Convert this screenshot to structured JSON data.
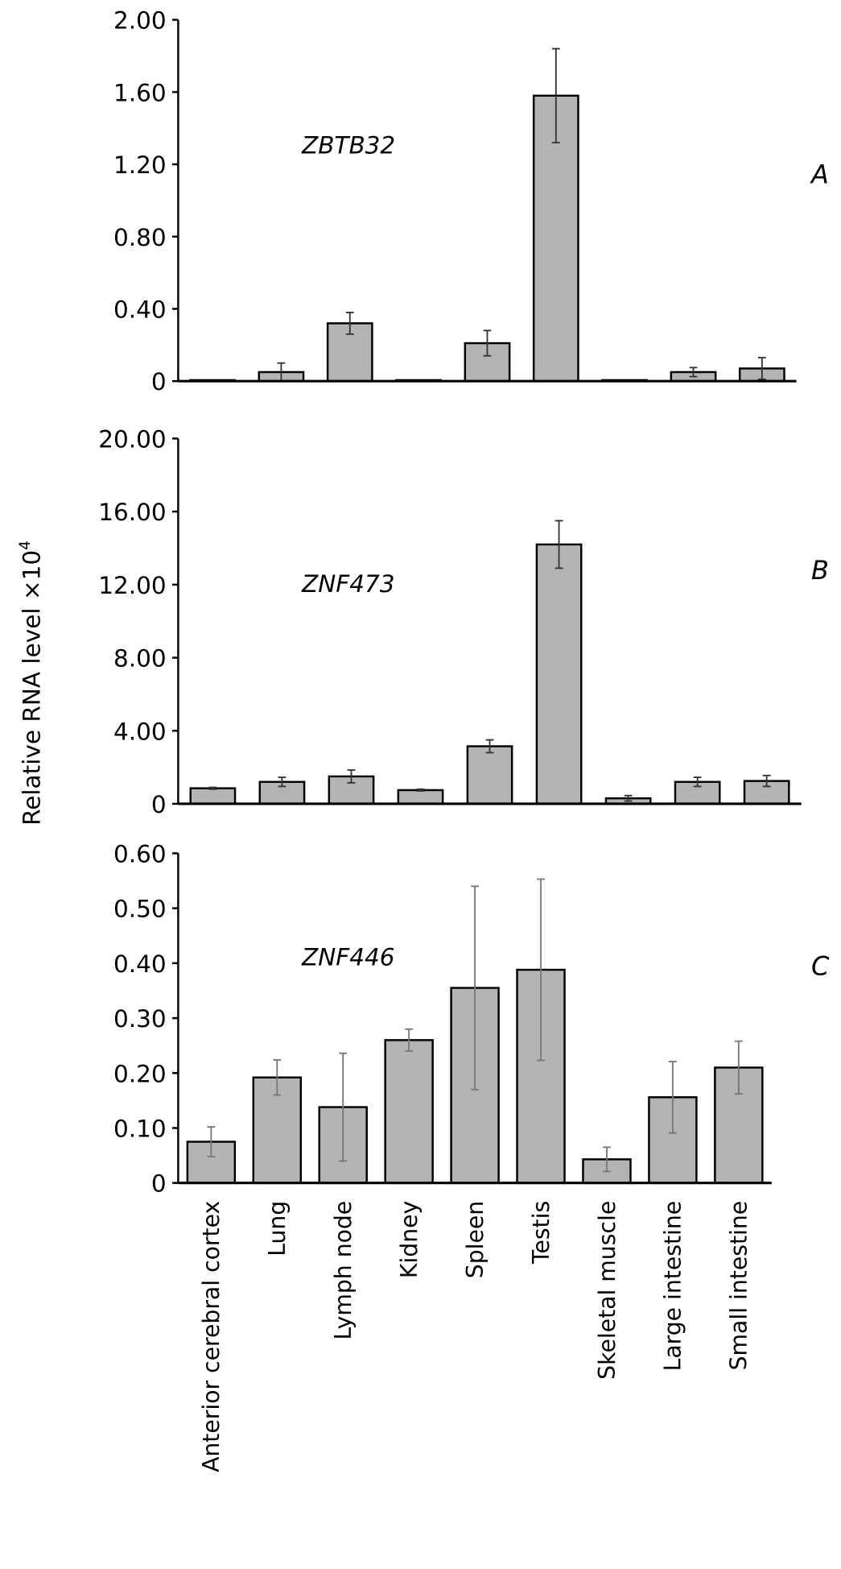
{
  "chart_data": [
    {
      "type": "bar",
      "panel": "A",
      "title": "ZBTB32",
      "categories": [
        "Anterior cerebral cortex",
        "Lung",
        "Lymph node",
        "Kidney",
        "Spleen",
        "Testis",
        "Skeletal muscle",
        "Large intestine",
        "Small intestine"
      ],
      "values": [
        0.0,
        0.05,
        0.32,
        0.0,
        0.21,
        1.58,
        0.0,
        0.05,
        0.07
      ],
      "errors": [
        0.0,
        0.05,
        0.06,
        0.0,
        0.07,
        0.26,
        0.0,
        0.025,
        0.06
      ],
      "ylim": [
        0,
        2.0
      ],
      "yticks": [
        "0",
        "0.40",
        "0.80",
        "1.20",
        "1.60",
        "2.00"
      ],
      "ytick_values": [
        0,
        0.4,
        0.8,
        1.2,
        1.6,
        2.0
      ],
      "error_color": "#333333"
    },
    {
      "type": "bar",
      "panel": "B",
      "title": "ZNF473",
      "categories": [
        "Anterior cerebral cortex",
        "Lung",
        "Lymph node",
        "Kidney",
        "Spleen",
        "Testis",
        "Skeletal muscle",
        "Large intestine",
        "Small intestine"
      ],
      "values": [
        0.85,
        1.2,
        1.5,
        0.75,
        3.15,
        14.2,
        0.3,
        1.2,
        1.25
      ],
      "errors": [
        0.05,
        0.25,
        0.35,
        0.05,
        0.35,
        1.3,
        0.15,
        0.25,
        0.3
      ],
      "ylim": [
        0,
        20.0
      ],
      "yticks": [
        "0",
        "4.00",
        "8.00",
        "12.00",
        "16.00",
        "20.00"
      ],
      "ytick_values": [
        0,
        4,
        8,
        12,
        16,
        20
      ],
      "error_color": "#333333"
    },
    {
      "type": "bar",
      "panel": "C",
      "title": "ZNF446",
      "categories": [
        "Anterior cerebral cortex",
        "Lung",
        "Lymph node",
        "Kidney",
        "Spleen",
        "Testis",
        "Skeletal muscle",
        "Large intestine",
        "Small intestine"
      ],
      "values": [
        0.075,
        0.192,
        0.138,
        0.26,
        0.355,
        0.388,
        0.043,
        0.156,
        0.21
      ],
      "errors": [
        0.027,
        0.032,
        0.098,
        0.02,
        0.185,
        0.165,
        0.022,
        0.065,
        0.048
      ],
      "ylim": [
        0,
        0.6
      ],
      "yticks": [
        "0",
        "0.10",
        "0.20",
        "0.30",
        "0.40",
        "0.50",
        "0.60"
      ],
      "ytick_values": [
        0,
        0.1,
        0.2,
        0.3,
        0.4,
        0.5,
        0.6
      ],
      "error_color": "#777777"
    }
  ],
  "ylabel": "Relative RNA level ×10",
  "ylabel_exp": "4",
  "bar_color": "#b3b4b6"
}
